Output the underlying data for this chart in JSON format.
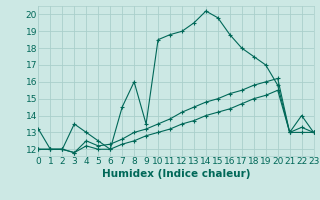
{
  "xlabel": "Humidex (Indice chaleur)",
  "bg_color": "#cce8e4",
  "grid_color": "#aacfcb",
  "line_color": "#006858",
  "series1": {
    "x": [
      0,
      1,
      2,
      3,
      4,
      5,
      6,
      7,
      8,
      9,
      10,
      11,
      12,
      13,
      14,
      15,
      16,
      17,
      18,
      19,
      20,
      21,
      22,
      23
    ],
    "y": [
      13.2,
      12.0,
      12.0,
      13.5,
      13.0,
      12.5,
      12.0,
      14.5,
      16.0,
      13.5,
      18.5,
      18.8,
      19.0,
      19.5,
      20.2,
      19.8,
      18.8,
      18.0,
      17.5,
      17.0,
      15.8,
      13.0,
      14.0,
      13.0
    ]
  },
  "series2": {
    "x": [
      0,
      1,
      2,
      3,
      4,
      5,
      6,
      7,
      8,
      9,
      10,
      11,
      12,
      13,
      14,
      15,
      16,
      17,
      18,
      19,
      20,
      21,
      22,
      23
    ],
    "y": [
      12.0,
      12.0,
      12.0,
      11.8,
      12.2,
      12.0,
      12.0,
      12.3,
      12.5,
      12.8,
      13.0,
      13.2,
      13.5,
      13.7,
      14.0,
      14.2,
      14.4,
      14.7,
      15.0,
      15.2,
      15.5,
      13.0,
      13.0,
      13.0
    ]
  },
  "series3": {
    "x": [
      0,
      1,
      2,
      3,
      4,
      5,
      6,
      7,
      8,
      9,
      10,
      11,
      12,
      13,
      14,
      15,
      16,
      17,
      18,
      19,
      20,
      21,
      22,
      23
    ],
    "y": [
      12.0,
      12.0,
      12.0,
      11.8,
      12.5,
      12.2,
      12.3,
      12.6,
      13.0,
      13.2,
      13.5,
      13.8,
      14.2,
      14.5,
      14.8,
      15.0,
      15.3,
      15.5,
      15.8,
      16.0,
      16.2,
      13.0,
      13.3,
      13.0
    ]
  },
  "xlim": [
    0,
    23
  ],
  "ylim": [
    11.6,
    20.5
  ],
  "yticks": [
    12,
    13,
    14,
    15,
    16,
    17,
    18,
    19,
    20
  ],
  "xticks": [
    0,
    1,
    2,
    3,
    4,
    5,
    6,
    7,
    8,
    9,
    10,
    11,
    12,
    13,
    14,
    15,
    16,
    17,
    18,
    19,
    20,
    21,
    22,
    23
  ],
  "xlabel_fontsize": 7.5,
  "tick_fontsize": 6.5
}
